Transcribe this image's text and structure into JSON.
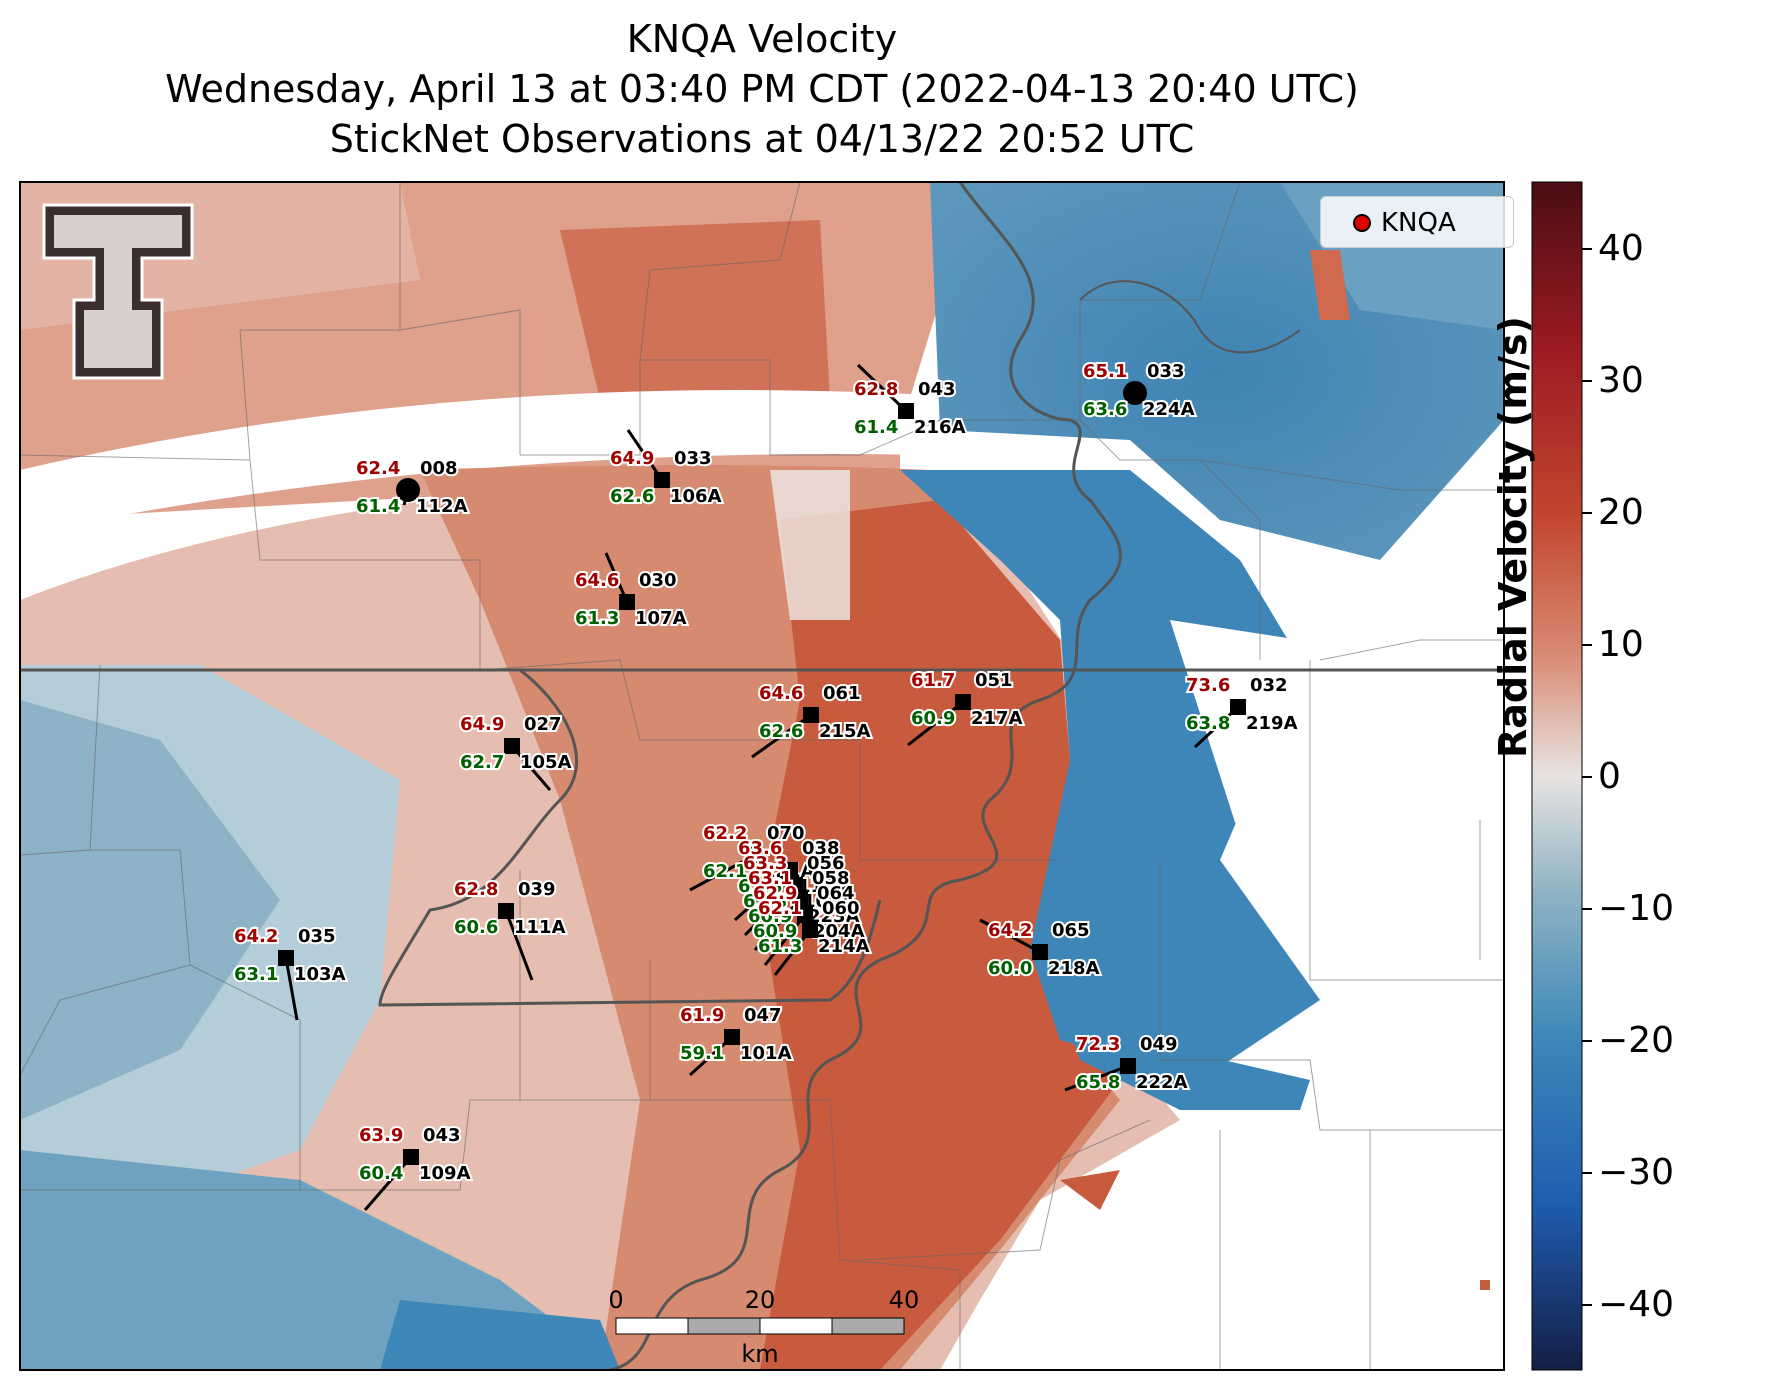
{
  "title": {
    "line1": "KNQA Velocity",
    "line2": "Wednesday, April 13 at 03:40 PM CDT (2022-04-13 20:40 UTC)",
    "line3": "StickNet Observations at 04/13/22 20:52 UTC"
  },
  "legend": {
    "label": "KNQA",
    "marker_color": "#e00000"
  },
  "colorbar": {
    "title": "Radial Velocity (m/s)",
    "min": -45,
    "max": 45,
    "ticks": [
      "40",
      "30",
      "20",
      "10",
      "0",
      "−10",
      "−20",
      "−30",
      "−40"
    ],
    "colors": [
      "#4a0d14",
      "#9c1a22",
      "#c2452f",
      "#d98c75",
      "#e8e4e2",
      "#8eb2c4",
      "#3d88b8",
      "#1f5db0",
      "#141e45"
    ]
  },
  "scale_bar": {
    "labels": [
      "0",
      "20",
      "40"
    ],
    "unit": "km"
  },
  "logo": {
    "text": "TT",
    "name": "Texas Tech double-T logo"
  },
  "stations": [
    {
      "id": "112A",
      "temp": "62.4",
      "dew": "61.4",
      "dir": "008"
    },
    {
      "id": "106A",
      "temp": "64.9",
      "dew": "62.6",
      "dir": "033"
    },
    {
      "id": "216A",
      "temp": "62.8",
      "dew": "61.4",
      "dir": "043"
    },
    {
      "id": "224A",
      "temp": "65.1",
      "dew": "63.6",
      "dir": "033"
    },
    {
      "id": "107A",
      "temp": "64.6",
      "dew": "61.3",
      "dir": "030"
    },
    {
      "id": "215A",
      "temp": "64.6",
      "dew": "62.6",
      "dir": "061"
    },
    {
      "id": "217A",
      "temp": "61.7",
      "dew": "60.9",
      "dir": "051"
    },
    {
      "id": "219A",
      "temp": "73.6",
      "dew": "63.8",
      "dir": "032"
    },
    {
      "id": "105A",
      "temp": "64.9",
      "dew": "62.7",
      "dir": "027"
    },
    {
      "id": "221A",
      "temp": "62.2",
      "dew": "62.1",
      "dir": "070"
    },
    {
      "id": "110A",
      "temp": "63.6",
      "dew": "61.8",
      "dir": "038"
    },
    {
      "id": "108A",
      "temp": "63.3",
      "dew": "61.3",
      "dir": "056"
    },
    {
      "id": "223A",
      "temp": "63.1",
      "dew": "60.9",
      "dir": "058"
    },
    {
      "id": "204A",
      "temp": "62.9",
      "dew": "60.9",
      "dir": "064"
    },
    {
      "id": "214A",
      "temp": "62.1",
      "dew": "61.3",
      "dir": "060"
    },
    {
      "id": "111A",
      "temp": "62.8",
      "dew": "60.6",
      "dir": "039"
    },
    {
      "id": "103A",
      "temp": "64.2",
      "dew": "63.1",
      "dir": "035"
    },
    {
      "id": "218A",
      "temp": "64.2",
      "dew": "60.0",
      "dir": "065"
    },
    {
      "id": "101A",
      "temp": "61.9",
      "dew": "59.1",
      "dir": "047"
    },
    {
      "id": "222A",
      "temp": "72.3",
      "dew": "65.8",
      "dir": "049"
    },
    {
      "id": "109A",
      "temp": "63.9",
      "dew": "60.4",
      "dir": "043"
    }
  ]
}
